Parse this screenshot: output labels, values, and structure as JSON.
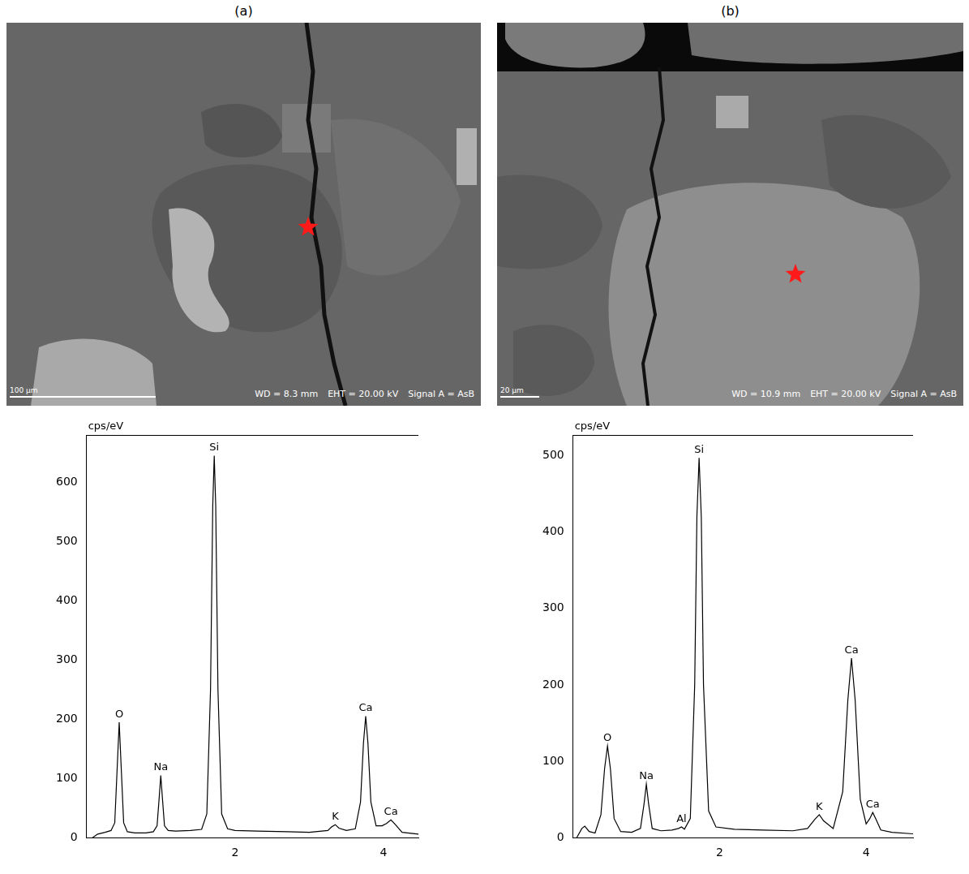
{
  "panels": [
    {
      "label": "(a)",
      "micrograph": {
        "scale_bar": "100 µm",
        "info": [
          "WD = 8.3 mm",
          "EHT = 20.00 kV",
          "Signal A = AsB"
        ]
      }
    },
    {
      "label": "(b)",
      "micrograph": {
        "scale_bar": "20 µm",
        "info": [
          "WD = 10.9 mm",
          "EHT = 20.00 kV",
          "Signal A = AsB"
        ]
      }
    }
  ],
  "chart_data": [
    {
      "type": "line",
      "y_label": "cps/eV",
      "color": "#000000",
      "grid": false,
      "x": [
        0.08,
        0.15,
        0.25,
        0.33,
        0.38,
        0.41,
        0.44,
        0.47,
        0.5,
        0.55,
        0.65,
        0.8,
        0.9,
        0.95,
        0.98,
        1.0,
        1.02,
        1.05,
        1.1,
        1.2,
        1.4,
        1.55,
        1.62,
        1.67,
        1.7,
        1.72,
        1.74,
        1.77,
        1.82,
        1.9,
        2.0,
        2.3,
        2.7,
        3.0,
        3.25,
        3.3,
        3.35,
        3.4,
        3.5,
        3.62,
        3.69,
        3.73,
        3.76,
        3.79,
        3.83,
        3.9,
        3.98,
        4.04,
        4.1,
        4.16,
        4.25,
        4.47
      ],
      "values": [
        0,
        6,
        9,
        12,
        25,
        110,
        195,
        110,
        25,
        10,
        8,
        8,
        10,
        20,
        70,
        105,
        70,
        20,
        12,
        11,
        12,
        14,
        40,
        250,
        560,
        645,
        560,
        250,
        40,
        15,
        12,
        11,
        10,
        9,
        12,
        18,
        22,
        16,
        12,
        15,
        60,
        160,
        205,
        160,
        60,
        20,
        20,
        24,
        30,
        22,
        9,
        6
      ],
      "xlim": [
        0,
        4.47
      ],
      "xticks": [
        2,
        4
      ],
      "ylim": [
        0,
        680
      ],
      "yticks": [
        0,
        100,
        200,
        300,
        400,
        500,
        600
      ],
      "annotations": [
        {
          "text": "O",
          "x": 0.44,
          "y": 195
        },
        {
          "text": "Na",
          "x": 1.0,
          "y": 105
        },
        {
          "text": "Si",
          "x": 1.72,
          "y": 645
        },
        {
          "text": "K",
          "x": 3.35,
          "y": 22
        },
        {
          "text": "Ca",
          "x": 3.76,
          "y": 205
        },
        {
          "text": "Ca",
          "x": 4.1,
          "y": 30
        }
      ]
    },
    {
      "type": "line",
      "y_label": "cps/eV",
      "color": "#000000",
      "grid": false,
      "x": [
        0.05,
        0.12,
        0.16,
        0.22,
        0.3,
        0.38,
        0.43,
        0.47,
        0.51,
        0.56,
        0.65,
        0.8,
        0.92,
        0.97,
        1.0,
        1.03,
        1.08,
        1.2,
        1.35,
        1.44,
        1.48,
        1.52,
        1.6,
        1.66,
        1.69,
        1.72,
        1.75,
        1.78,
        1.85,
        1.95,
        2.2,
        2.6,
        3.0,
        3.2,
        3.3,
        3.36,
        3.42,
        3.55,
        3.68,
        3.75,
        3.8,
        3.85,
        3.92,
        4.0,
        4.05,
        4.09,
        4.13,
        4.2,
        4.35,
        4.64
      ],
      "values": [
        0,
        12,
        15,
        8,
        6,
        30,
        90,
        120,
        90,
        25,
        8,
        7,
        12,
        45,
        70,
        45,
        12,
        9,
        10,
        12,
        14,
        11,
        25,
        200,
        420,
        497,
        420,
        200,
        35,
        14,
        11,
        10,
        9,
        12,
        24,
        30,
        22,
        12,
        60,
        180,
        235,
        180,
        50,
        18,
        25,
        33,
        25,
        10,
        7,
        5
      ],
      "xlim": [
        0,
        4.64
      ],
      "xticks": [
        2,
        4
      ],
      "ylim": [
        0,
        527
      ],
      "yticks": [
        0,
        100,
        200,
        300,
        400,
        500
      ],
      "annotations": [
        {
          "text": "O",
          "x": 0.47,
          "y": 120
        },
        {
          "text": "Na",
          "x": 1.0,
          "y": 70
        },
        {
          "text": "Al",
          "x": 1.48,
          "y": 14
        },
        {
          "text": "Si",
          "x": 1.72,
          "y": 497
        },
        {
          "text": "K",
          "x": 3.36,
          "y": 30
        },
        {
          "text": "Ca",
          "x": 3.8,
          "y": 235
        },
        {
          "text": "Ca",
          "x": 4.09,
          "y": 33
        }
      ]
    }
  ]
}
